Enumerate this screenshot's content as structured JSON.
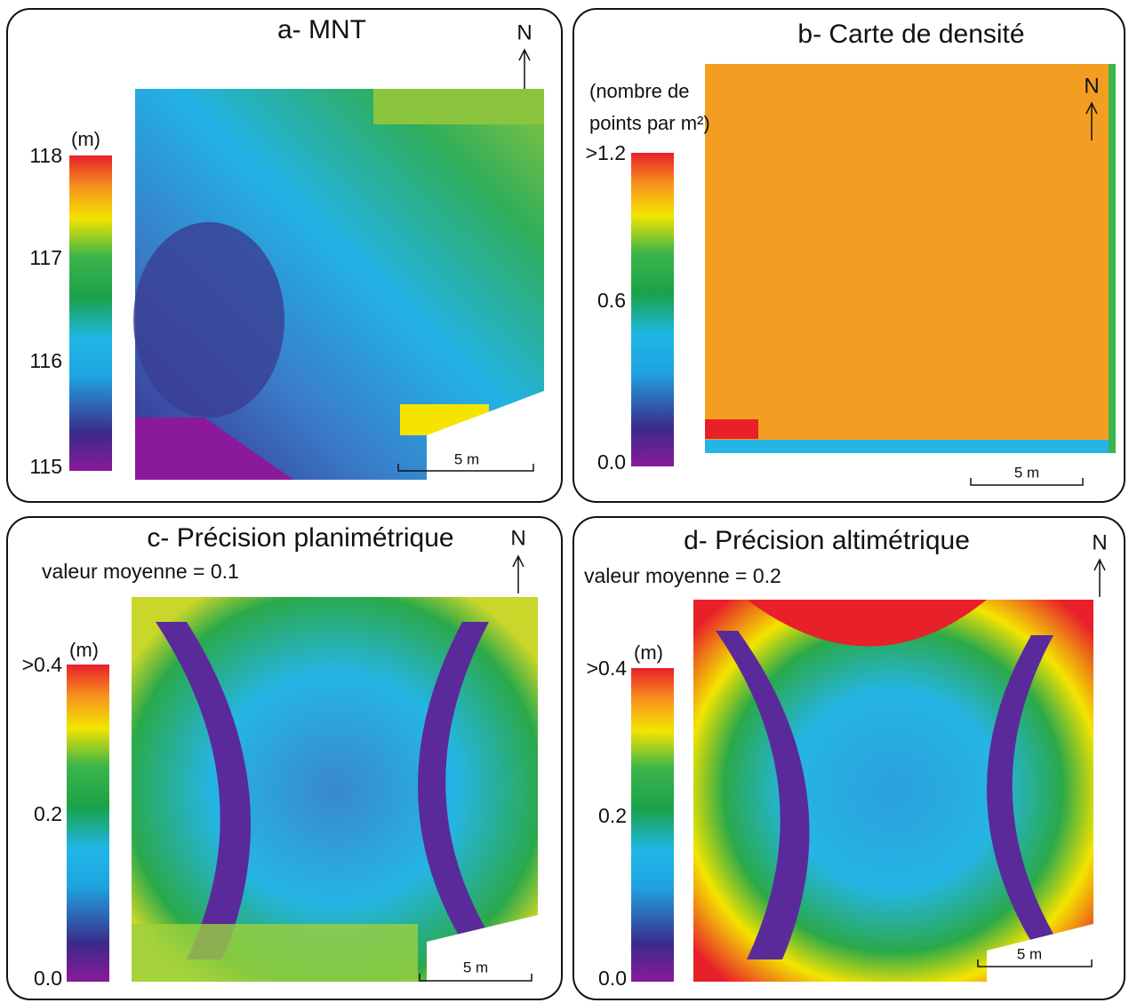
{
  "panels": [
    {
      "title": "a- MNT",
      "unit": [
        "(m)"
      ],
      "ticks": [
        "118",
        "117",
        "116",
        "115"
      ],
      "scale": "5 m",
      "north": "N"
    },
    {
      "title": "b- Carte de densité",
      "unit": [
        "(nombre de",
        "points par m²)"
      ],
      "ticks": [
        ">1.2",
        "0.6",
        "0.0"
      ],
      "scale": "5 m",
      "north": "N"
    },
    {
      "title": "c- Précision planimétrique",
      "subtitle": "valeur moyenne = 0.1",
      "unit": [
        "(m)"
      ],
      "ticks": [
        ">0.4",
        "0.2",
        "0.0"
      ],
      "scale": "5 m",
      "north": "N"
    },
    {
      "title": "d- Précision altimétrique",
      "subtitle": "valeur moyenne = 0.2",
      "unit": [
        "(m)"
      ],
      "ticks": [
        ">0.4",
        "0.2",
        "0.0"
      ],
      "scale": "5 m",
      "north": "N"
    }
  ]
}
